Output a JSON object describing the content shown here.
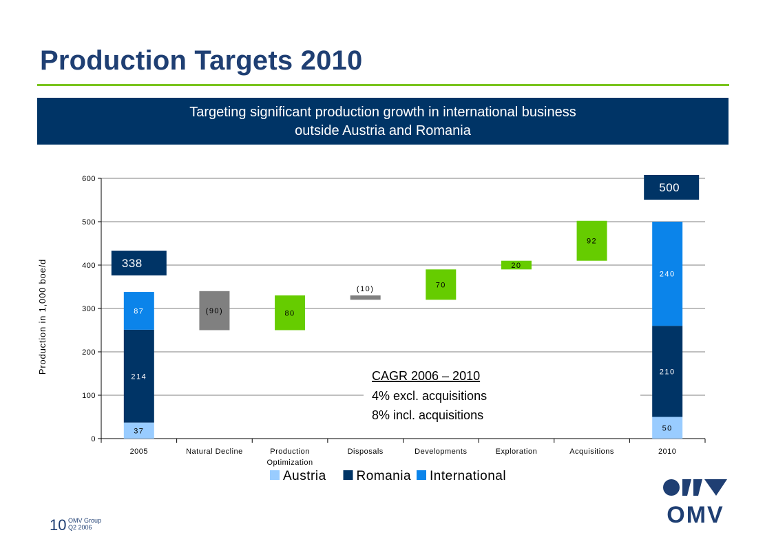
{
  "slide": {
    "title": "Production Targets 2010",
    "banner": {
      "line1": "Targeting significant production growth in international business",
      "line2": "outside Austria and Romania"
    },
    "footer": {
      "page_number": "10",
      "company": "OMV Group",
      "period": "Q2 2006"
    },
    "logo_text": "OMV"
  },
  "chart_data": {
    "type": "bar",
    "subtype": "waterfall",
    "ylabel": "Production in 1,000 boe/d",
    "ylim": [
      0,
      600
    ],
    "yticks": [
      "0",
      "100",
      "200",
      "300",
      "400",
      "500",
      "600"
    ],
    "grid": true,
    "categories": [
      "2005",
      "Natural Decline",
      "Production Optimization",
      "Disposals",
      "Developments",
      "Exploration",
      "Acquisitions",
      "2010"
    ],
    "totals": [
      {
        "category": "2005",
        "label": "338",
        "segments": [
          {
            "name": "Austria",
            "value": 37,
            "label": "37"
          },
          {
            "name": "Romania",
            "value": 214,
            "label": "214"
          },
          {
            "name": "International",
            "value": 87,
            "label": "87"
          }
        ]
      },
      {
        "category": "2010",
        "label": "500",
        "segments": [
          {
            "name": "Austria",
            "value": 50,
            "label": "50"
          },
          {
            "name": "Romania",
            "value": 210,
            "label": "210"
          },
          {
            "name": "International",
            "value": 240,
            "label": "240"
          }
        ]
      }
    ],
    "steps": [
      {
        "category": "Natural Decline",
        "start": 340,
        "end": 250,
        "label": "(90)",
        "color": "#808080"
      },
      {
        "category": "Production Optimization",
        "start": 250,
        "end": 330,
        "label": "80",
        "color": "#66cc00"
      },
      {
        "category": "Disposals",
        "start": 330,
        "end": 320,
        "label": "(10)",
        "color": "#808080"
      },
      {
        "category": "Developments",
        "start": 320,
        "end": 390,
        "label": "70",
        "color": "#66cc00"
      },
      {
        "category": "Exploration",
        "start": 390,
        "end": 410,
        "label": "20",
        "color": "#66cc00"
      },
      {
        "category": "Acquisitions",
        "start": 410,
        "end": 502,
        "label": "92",
        "color": "#66cc00"
      }
    ],
    "legend": {
      "position": "bottom",
      "entries": [
        {
          "name": "Austria",
          "color": "#99ccff"
        },
        {
          "name": "Romania",
          "color": "#003466"
        },
        {
          "name": "International",
          "color": "#0b84ea"
        }
      ]
    },
    "annotation": {
      "title": "CAGR 2006 – 2010",
      "lines": [
        "4% excl. acquisitions",
        "8% incl. acquisitions"
      ]
    }
  }
}
